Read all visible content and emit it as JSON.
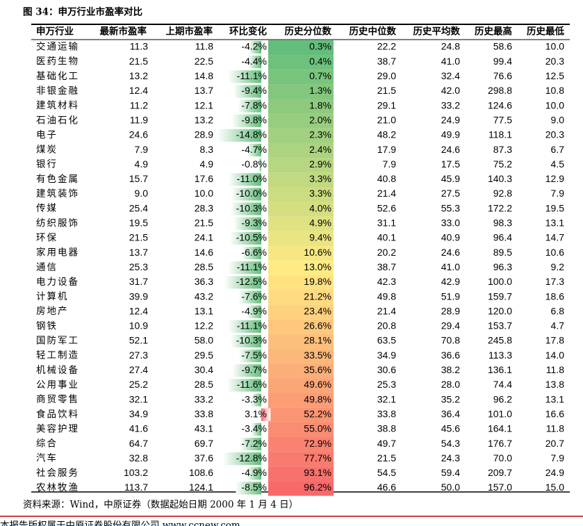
{
  "header": {
    "title": "图 34：申万行业市盈率对比"
  },
  "table": {
    "columns": [
      "申万行业",
      "最新市盈率",
      "上期市盈率",
      "环比变化",
      "历史分位数",
      "历史中位数",
      "历史平均数",
      "历史最高",
      "历史最低"
    ],
    "rows": [
      [
        "交通运输",
        "11.3",
        "11.8",
        "-4.2%",
        "0.3%",
        "22.2",
        "24.8",
        "58.6",
        "10.0"
      ],
      [
        "医药生物",
        "21.5",
        "22.5",
        "-4.4%",
        "0.4%",
        "38.7",
        "41.0",
        "99.4",
        "20.3"
      ],
      [
        "基础化工",
        "13.2",
        "14.8",
        "-11.1%",
        "0.7%",
        "29.0",
        "32.4",
        "76.6",
        "12.5"
      ],
      [
        "非银金融",
        "12.4",
        "13.7",
        "-9.4%",
        "1.3%",
        "21.5",
        "42.0",
        "298.8",
        "10.8"
      ],
      [
        "建筑材料",
        "11.2",
        "12.1",
        "-7.8%",
        "1.8%",
        "29.1",
        "33.2",
        "124.6",
        "10.0"
      ],
      [
        "石油石化",
        "11.9",
        "13.2",
        "-9.8%",
        "2.0%",
        "21.0",
        "24.9",
        "77.5",
        "9.0"
      ],
      [
        "电子",
        "24.6",
        "28.9",
        "-14.8%",
        "2.3%",
        "48.2",
        "49.9",
        "118.1",
        "20.3"
      ],
      [
        "煤炭",
        "7.9",
        "8.3",
        "-4.7%",
        "2.4%",
        "17.9",
        "24.6",
        "87.3",
        "6.7"
      ],
      [
        "银行",
        "4.9",
        "4.9",
        "-0.8%",
        "2.9%",
        "7.9",
        "17.5",
        "75.2",
        "4.5"
      ],
      [
        "有色金属",
        "15.7",
        "17.6",
        "-11.0%",
        "3.3%",
        "40.8",
        "45.9",
        "140.3",
        "12.9"
      ],
      [
        "建筑装饰",
        "9.0",
        "10.0",
        "-10.0%",
        "3.3%",
        "21.4",
        "27.5",
        "92.8",
        "7.9"
      ],
      [
        "传媒",
        "25.4",
        "28.3",
        "-10.3%",
        "4.0%",
        "52.6",
        "55.3",
        "172.2",
        "19.5"
      ],
      [
        "纺织服饰",
        "19.5",
        "21.5",
        "-9.3%",
        "4.9%",
        "31.1",
        "33.0",
        "98.3",
        "13.1"
      ],
      [
        "环保",
        "21.5",
        "24.1",
        "-10.5%",
        "9.4%",
        "40.1",
        "40.9",
        "96.4",
        "14.7"
      ],
      [
        "家用电器",
        "13.7",
        "14.6",
        "-6.6%",
        "10.6%",
        "20.2",
        "24.6",
        "89.5",
        "10.6"
      ],
      [
        "通信",
        "25.3",
        "28.5",
        "-11.1%",
        "13.0%",
        "38.7",
        "41.0",
        "96.3",
        "9.2"
      ],
      [
        "电力设备",
        "31.7",
        "36.3",
        "-12.5%",
        "19.8%",
        "42.3",
        "42.9",
        "100.0",
        "17.3"
      ],
      [
        "计算机",
        "39.9",
        "43.2",
        "-7.6%",
        "21.2%",
        "49.8",
        "51.9",
        "159.7",
        "18.6"
      ],
      [
        "房地产",
        "12.4",
        "13.1",
        "-4.9%",
        "23.4%",
        "21.4",
        "28.9",
        "120.0",
        "6.8"
      ],
      [
        "钢铁",
        "10.9",
        "12.2",
        "-11.1%",
        "26.6%",
        "20.8",
        "29.4",
        "153.7",
        "4.7"
      ],
      [
        "国防军工",
        "52.1",
        "58.0",
        "-10.3%",
        "28.1%",
        "63.5",
        "70.8",
        "245.8",
        "17.8"
      ],
      [
        "轻工制造",
        "27.3",
        "29.5",
        "-7.5%",
        "33.5%",
        "34.9",
        "36.6",
        "113.3",
        "14.0"
      ],
      [
        "机械设备",
        "27.4",
        "30.4",
        "-9.7%",
        "35.6%",
        "30.6",
        "38.2",
        "136.1",
        "11.8"
      ],
      [
        "公用事业",
        "25.2",
        "28.5",
        "-11.6%",
        "49.6%",
        "25.3",
        "28.0",
        "74.4",
        "13.8"
      ],
      [
        "商贸零售",
        "32.1",
        "33.2",
        "-3.3%",
        "49.8%",
        "32.1",
        "35.2",
        "96.2",
        "13.1"
      ],
      [
        "食品饮料",
        "34.9",
        "33.8",
        "3.1%",
        "52.2%",
        "33.8",
        "36.4",
        "101.0",
        "16.6"
      ],
      [
        "美容护理",
        "41.6",
        "43.1",
        "-3.4%",
        "55.0%",
        "38.8",
        "45.6",
        "164.1",
        "11.8"
      ],
      [
        "综合",
        "64.7",
        "69.7",
        "-7.2%",
        "72.9%",
        "49.7",
        "54.3",
        "176.7",
        "20.7"
      ],
      [
        "汽车",
        "32.8",
        "37.6",
        "-12.8%",
        "77.7%",
        "21.5",
        "24.3",
        "70.0",
        "7.9"
      ],
      [
        "社会服务",
        "103.2",
        "108.6",
        "-4.9%",
        "93.1%",
        "54.5",
        "59.4",
        "209.7",
        "24.9"
      ],
      [
        "农林牧渔",
        "113.7",
        "124.1",
        "-8.5%",
        "96.2%",
        "46.6",
        "50.0",
        "157.0",
        "15.0"
      ]
    ]
  },
  "footer": {
    "source": "资料来源：Wind，中原证券（数据起始日期 2000 年 1 月 4 日）",
    "notice": "本报告版权属于中原证券股份有限公司 www.ccnew.com"
  }
}
